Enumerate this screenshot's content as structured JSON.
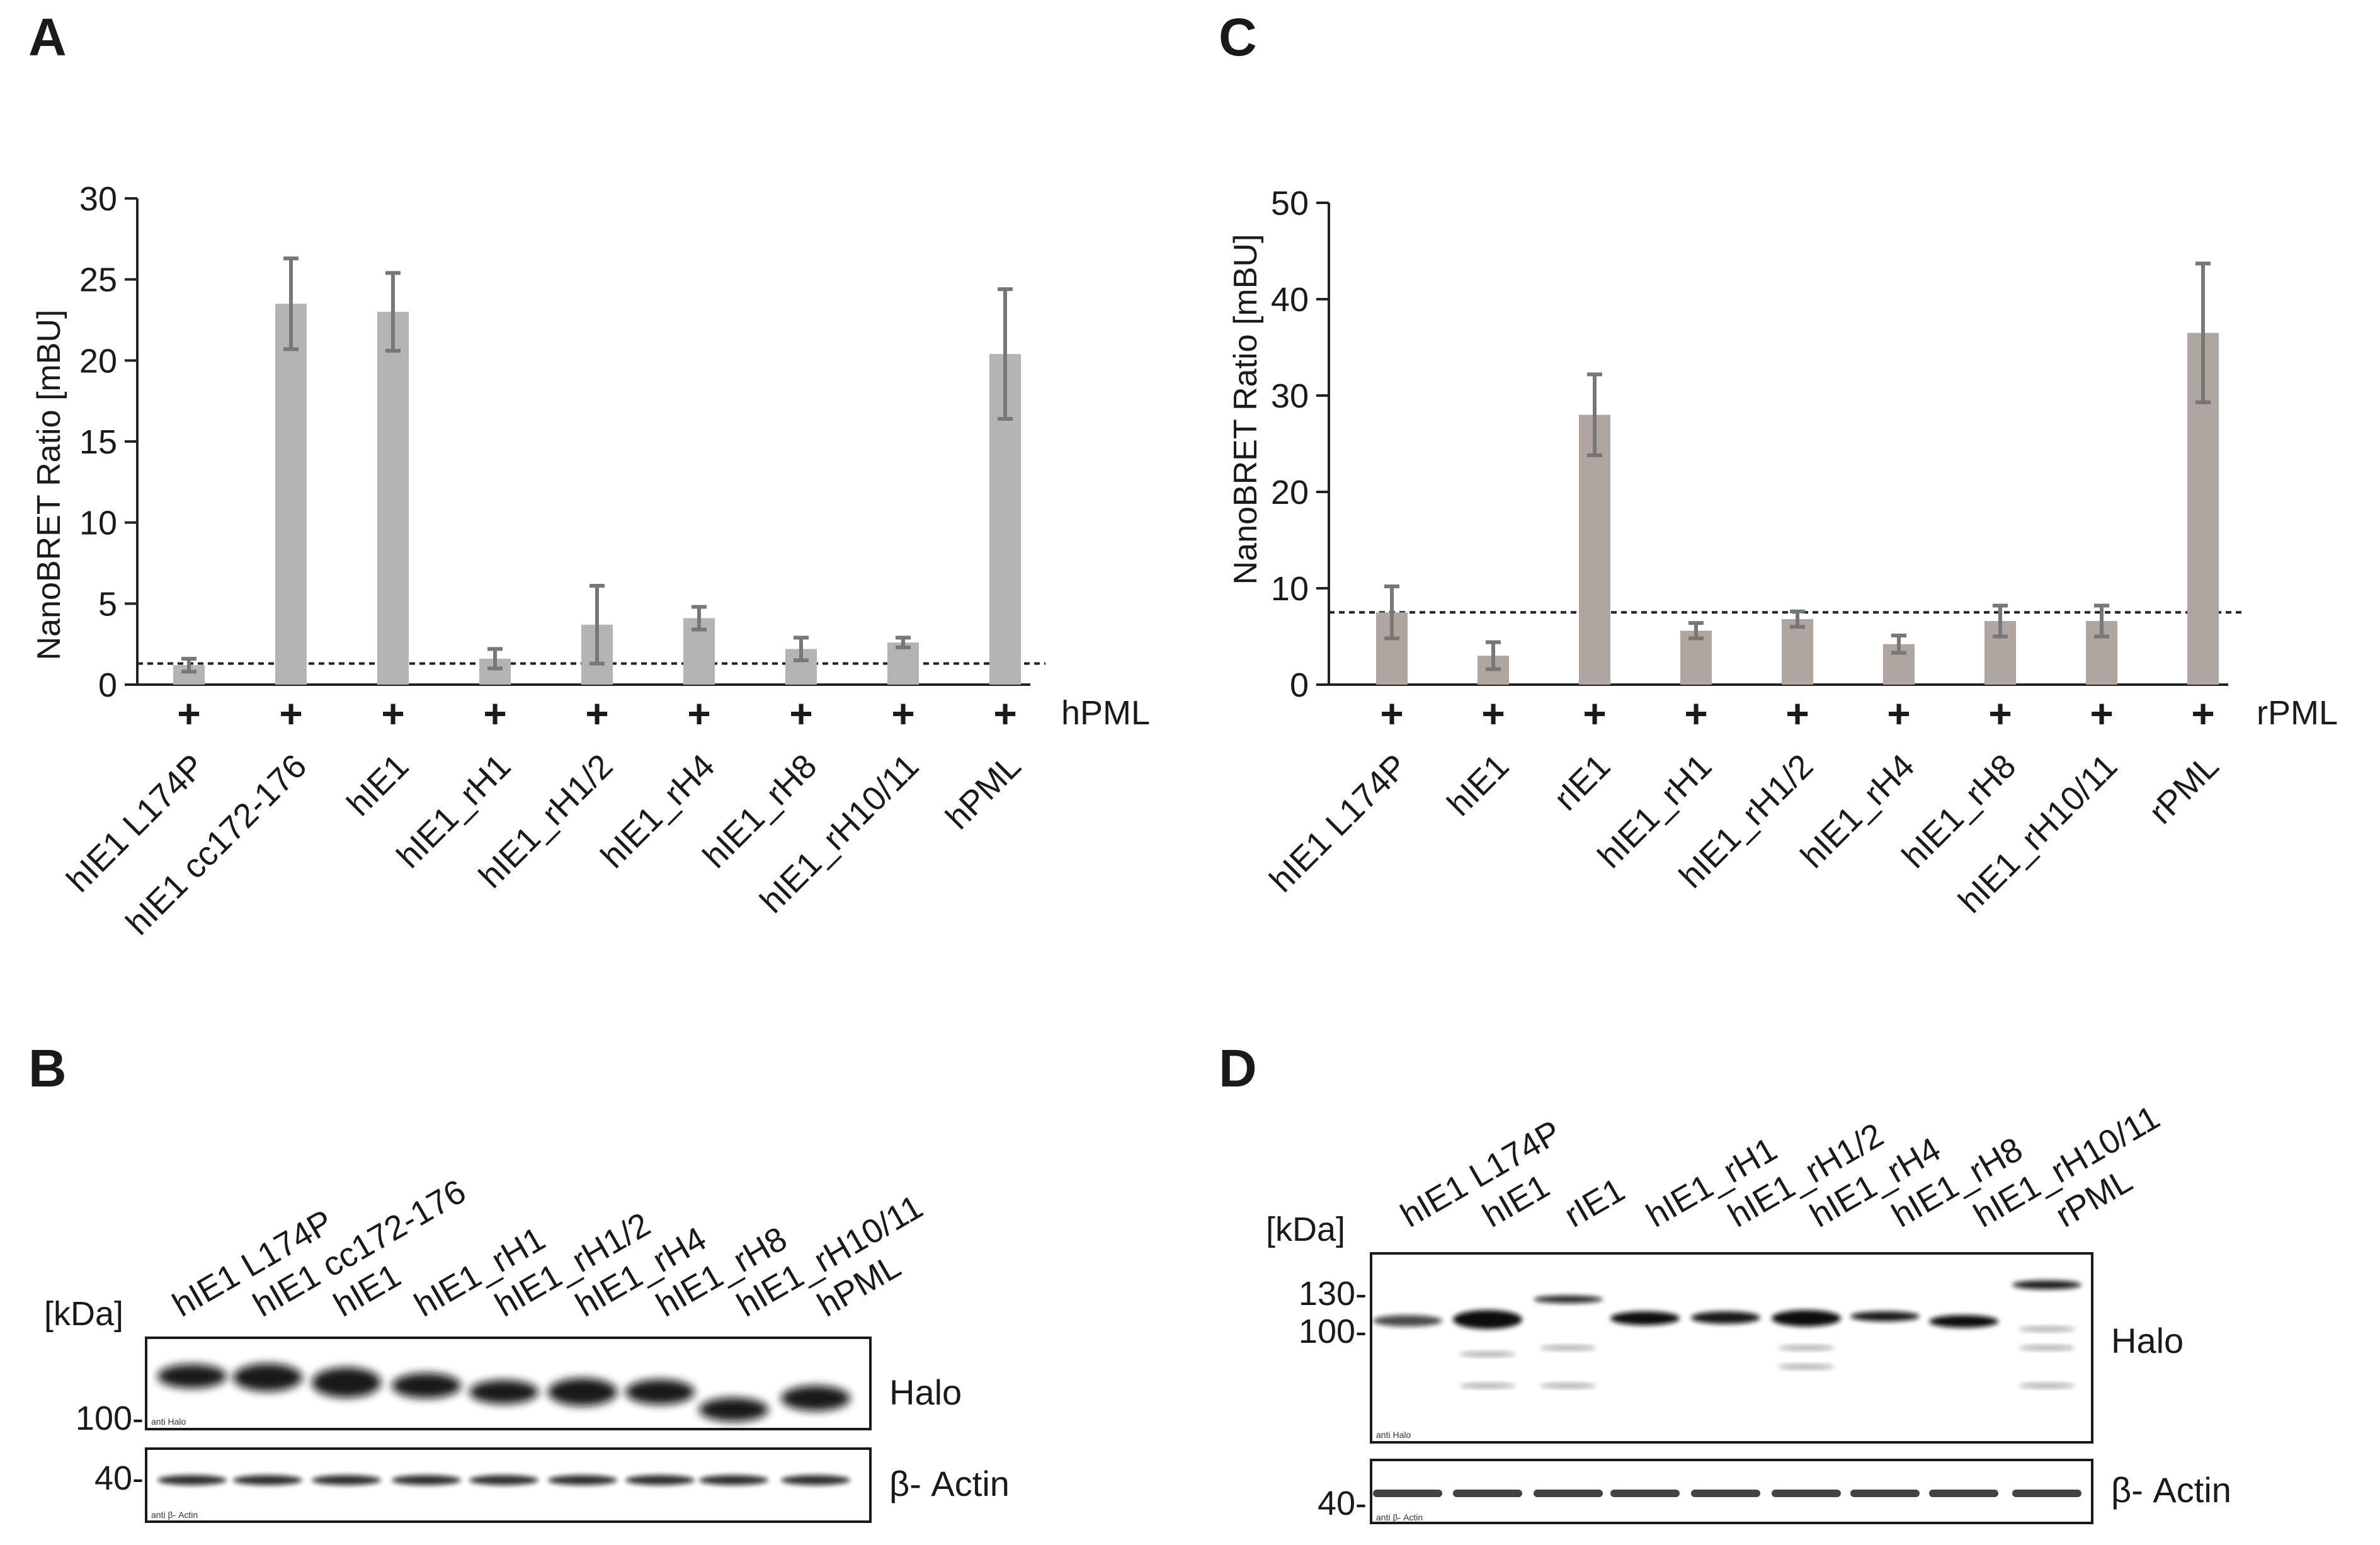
{
  "panels": {
    "A": "A",
    "B": "B",
    "C": "C",
    "D": "D"
  },
  "chart_data": [
    {
      "panel": "A",
      "type": "bar",
      "ylabel": "NanoBRET Ratio [mBU]",
      "ylim": [
        0,
        30
      ],
      "yticks": [
        0,
        5,
        10,
        15,
        20,
        25,
        30
      ],
      "categories": [
        "hIE1 L174P",
        "hIE1 cc172-176",
        "hIE1",
        "hIE1_rH1",
        "hIE1_rH1/2",
        "hIE1_rH4",
        "hIE1_rH8",
        "hIE1_rH10/11",
        "hPML"
      ],
      "values": [
        1.2,
        23.5,
        23.0,
        1.6,
        3.7,
        4.1,
        2.2,
        2.6,
        20.4
      ],
      "errors": [
        0.4,
        2.8,
        2.4,
        0.6,
        2.4,
        0.7,
        0.7,
        0.3,
        4.0
      ],
      "threshold": 1.3,
      "cofactor_symbol": "+",
      "cofactor_label": "hPML",
      "bar_color": "#b4b4b4",
      "error_color": "#777777"
    },
    {
      "panel": "C",
      "type": "bar",
      "ylabel": "NanoBRET Ratio [mBU]",
      "ylim": [
        0,
        50
      ],
      "yticks": [
        0,
        10,
        20,
        30,
        40,
        50
      ],
      "categories": [
        "hIE1 L174P",
        "hIE1",
        "rIE1",
        "hIE1_rH1",
        "hIE1_rH1/2",
        "hIE1_rH4",
        "hIE1_rH8",
        "hIE1_rH10/11",
        "rPML"
      ],
      "values": [
        7.5,
        3.0,
        28.0,
        5.6,
        6.8,
        4.2,
        6.6,
        6.6,
        36.5
      ],
      "errors": [
        2.7,
        1.4,
        4.2,
        0.8,
        0.8,
        0.9,
        1.6,
        1.6,
        7.2
      ],
      "threshold": 7.5,
      "cofactor_symbol": "+",
      "cofactor_label": "rPML",
      "bar_color": "#b0a6a0",
      "error_color": "#777777"
    }
  ],
  "blots": {
    "B": {
      "lanes": [
        "hIE1 L174P",
        "hIE1 cc172-176",
        "hIE1",
        "hIE1_rH1",
        "hIE1_rH1/2",
        "hIE1_rH4",
        "hIE1_rH8",
        "hIE1_rH10/11",
        "hPML"
      ],
      "kda_label": "[kDa]",
      "markers_top": [
        "100-"
      ],
      "markers_bottom": [
        "40-"
      ],
      "top_label": "Halo",
      "bottom_label": "β- Actin",
      "top_tiny": "anti Halo",
      "bottom_tiny": "anti β- Actin"
    },
    "D": {
      "lanes": [
        "hIE1 L174P",
        "hIE1",
        "rIE1",
        "hIE1_rH1",
        "hIE1_rH1/2",
        "hIE1_rH4",
        "hIE1_rH8",
        "hIE1_rH10/11",
        "rPML"
      ],
      "kda_label": "[kDa]",
      "markers_top": [
        "130-",
        "100-"
      ],
      "markers_bottom": [
        "40-"
      ],
      "top_label": "Halo",
      "bottom_label": "β- Actin",
      "top_tiny": "anti Halo",
      "bottom_tiny": "anti β- Actin"
    }
  }
}
